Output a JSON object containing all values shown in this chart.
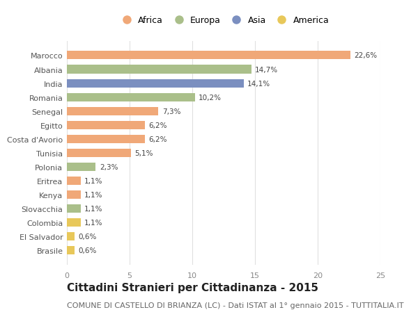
{
  "countries": [
    "Marocco",
    "Albania",
    "India",
    "Romania",
    "Senegal",
    "Egitto",
    "Costa d'Avorio",
    "Tunisia",
    "Polonia",
    "Eritrea",
    "Kenya",
    "Slovacchia",
    "Colombia",
    "El Salvador",
    "Brasile"
  ],
  "values": [
    22.6,
    14.7,
    14.1,
    10.2,
    7.3,
    6.2,
    6.2,
    5.1,
    2.3,
    1.1,
    1.1,
    1.1,
    1.1,
    0.6,
    0.6
  ],
  "labels": [
    "22,6%",
    "14,7%",
    "14,1%",
    "10,2%",
    "7,3%",
    "6,2%",
    "6,2%",
    "5,1%",
    "2,3%",
    "1,1%",
    "1,1%",
    "1,1%",
    "1,1%",
    "0,6%",
    "0,6%"
  ],
  "continents": [
    "Africa",
    "Europa",
    "Asia",
    "Europa",
    "Africa",
    "Africa",
    "Africa",
    "Africa",
    "Europa",
    "Africa",
    "Africa",
    "Europa",
    "America",
    "America",
    "America"
  ],
  "colors": {
    "Africa": "#F0A878",
    "Europa": "#AABF8A",
    "Asia": "#7B8FC0",
    "America": "#E8C85A"
  },
  "legend_order": [
    "Africa",
    "Europa",
    "Asia",
    "America"
  ],
  "title": "Cittadini Stranieri per Cittadinanza - 2015",
  "subtitle": "COMUNE DI CASTELLO DI BRIANZA (LC) - Dati ISTAT al 1° gennaio 2015 - TUTTITALIA.IT",
  "xlim": [
    0,
    25
  ],
  "xticks": [
    0,
    5,
    10,
    15,
    20,
    25
  ],
  "background_color": "#ffffff",
  "grid_color": "#e0e0e0",
  "bar_height": 0.6,
  "title_fontsize": 11,
  "subtitle_fontsize": 8,
  "label_fontsize": 7.5,
  "tick_fontsize": 8,
  "legend_fontsize": 9
}
